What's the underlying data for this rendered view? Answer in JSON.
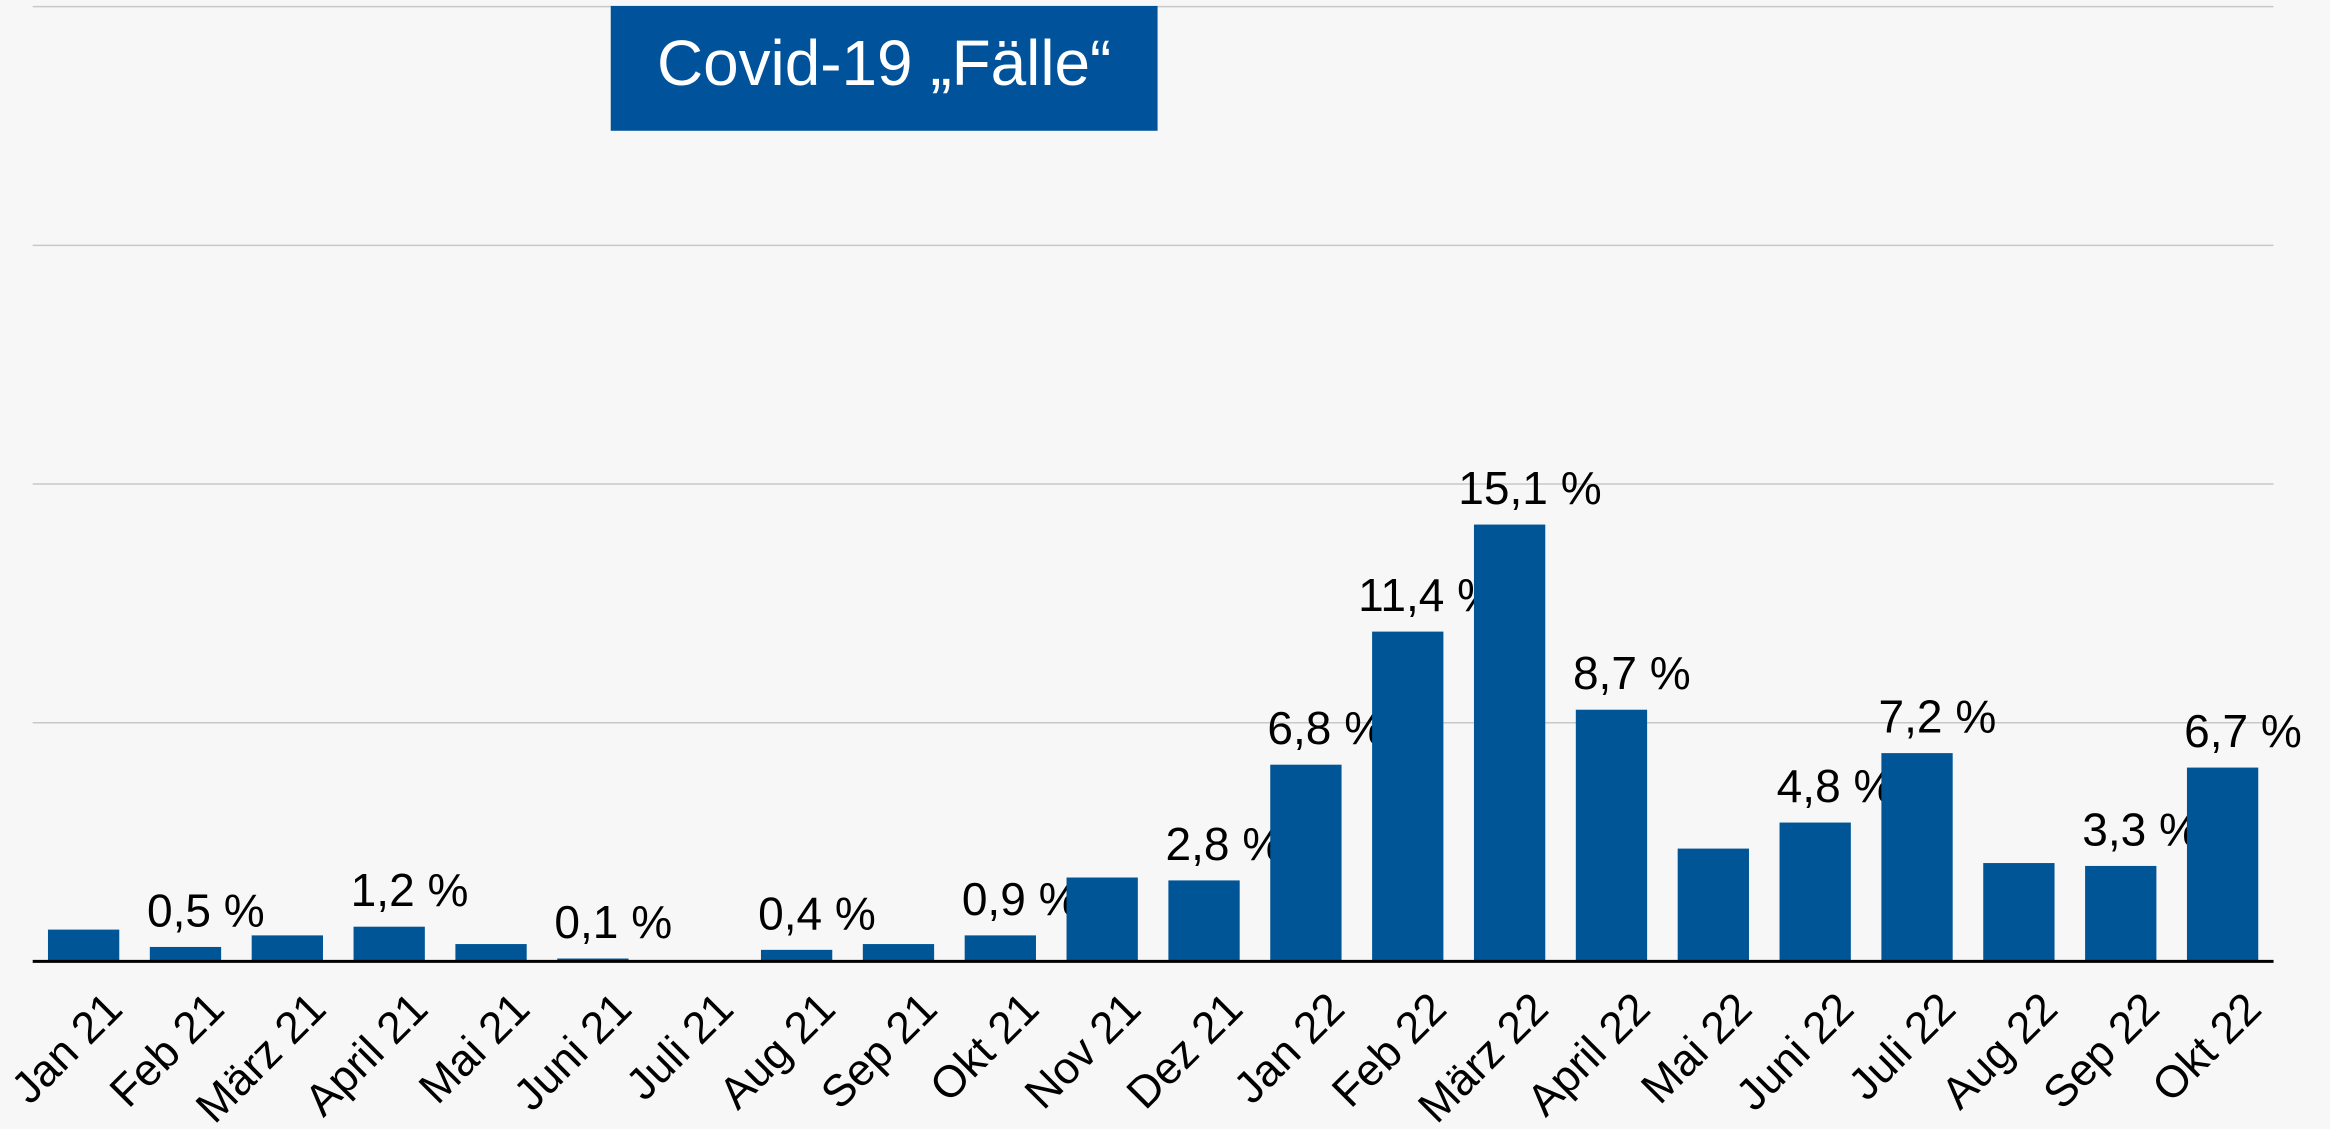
{
  "chart_data": {
    "type": "bar",
    "title": "Covid-19 „Fälle“",
    "categories": [
      "Jan 21",
      "Feb 21",
      "März 21",
      "April 21",
      "Mai 21",
      "Juni 21",
      "Juli 21",
      "Aug 21",
      "Sep 21",
      "Okt 21",
      "Nov 21",
      "Dez 21",
      "Jan 22",
      "Feb 22",
      "März 22",
      "April 22",
      "Mai 22",
      "Juni 22",
      "Juli 22",
      "Aug 22",
      "Sep 22",
      "Okt 22"
    ],
    "values": [
      1.1,
      0.5,
      0.9,
      1.2,
      0.6,
      0.1,
      0,
      0.4,
      0.6,
      0.9,
      2.9,
      2.8,
      6.8,
      11.4,
      15.1,
      8.7,
      3.9,
      4.8,
      7.2,
      3.4,
      3.3,
      6.7
    ],
    "value_labels": [
      null,
      "0,5 %",
      null,
      "1,2 %",
      null,
      "0,1 %",
      null,
      "0,4 %",
      null,
      "0,9 %",
      null,
      "2,8 %",
      "6,8 %",
      "11,4 %",
      "15,1 %",
      "8,7 %",
      null,
      "4,8 %",
      "7,2 %",
      null,
      "3,3 %",
      "6,7 %"
    ],
    "color": "#005596",
    "ylim": [
      0,
      33
    ],
    "yticks": [
      0,
      8.25,
      16.5,
      24.75,
      33
    ],
    "grid": true
  }
}
